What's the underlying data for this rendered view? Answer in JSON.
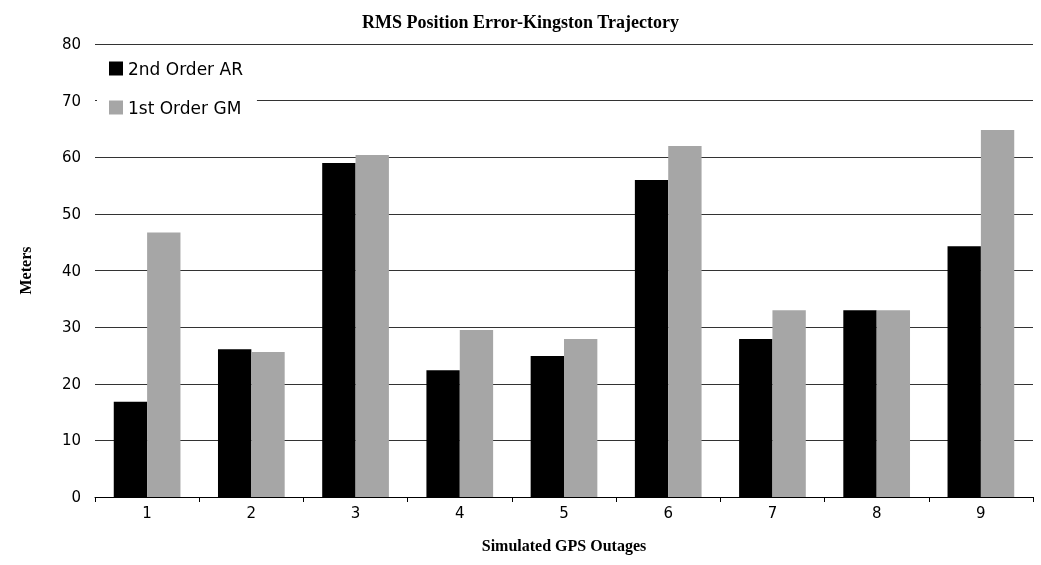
{
  "chart_data": {
    "type": "bar",
    "title": "RMS Position Error-Kingston Trajectory",
    "xlabel": "Simulated GPS Outages",
    "ylabel": "Meters",
    "categories": [
      "1",
      "2",
      "3",
      "4",
      "5",
      "6",
      "7",
      "8",
      "9"
    ],
    "series": [
      {
        "name": "2nd Order AR",
        "color": "#000000",
        "values": [
          16.8,
          26.1,
          59,
          22.4,
          24.9,
          56,
          27.9,
          33,
          44.3
        ]
      },
      {
        "name": "1st Order GM",
        "color": "#a6a6a6",
        "values": [
          46.7,
          25.6,
          60.4,
          29.5,
          27.9,
          62,
          33,
          33,
          64.8
        ]
      }
    ],
    "ylim": [
      0,
      80
    ],
    "yticks": [
      0,
      10,
      20,
      30,
      40,
      50,
      60,
      70,
      80
    ],
    "grid": "y",
    "legend": "top left"
  }
}
